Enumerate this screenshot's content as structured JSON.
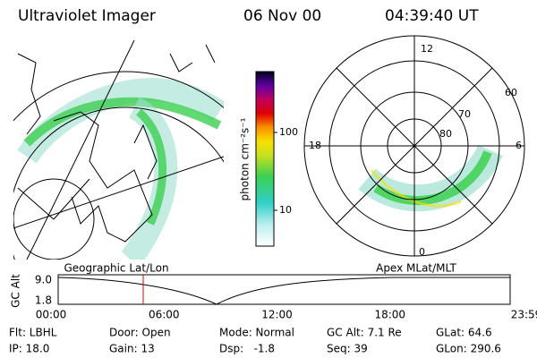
{
  "header": {
    "title": "Ultraviolet Imager",
    "date": "06 Nov 00",
    "time": "04:39:40 UT"
  },
  "colorbar": {
    "label": "photon cm⁻²s⁻¹",
    "ticks": [
      "100",
      "10"
    ]
  },
  "left_panel": {
    "caption": "Geographic Lat/Lon"
  },
  "right_panel": {
    "caption": "Apex MLat/MLT",
    "mlt_labels": [
      "12",
      "18",
      "6",
      "0"
    ],
    "lat_labels": [
      "60",
      "70",
      "80"
    ]
  },
  "altitude_plot": {
    "ylabel": "GC Alt",
    "yticks": [
      "9.0",
      "1.8"
    ],
    "xticks": [
      "00:00",
      "06:00",
      "12:00",
      "18:00",
      "23:59"
    ]
  },
  "footer": {
    "rows": [
      [
        "Flt: LBHL",
        "Door: Open",
        "Mode: Normal",
        "GC Alt: 7.1 Re",
        "GLat: 64.6"
      ],
      [
        "IP: 18.0",
        "Gain: 13",
        "Dsp:   -1.8",
        "Seq: 39",
        "GLon: 290.6"
      ]
    ]
  }
}
